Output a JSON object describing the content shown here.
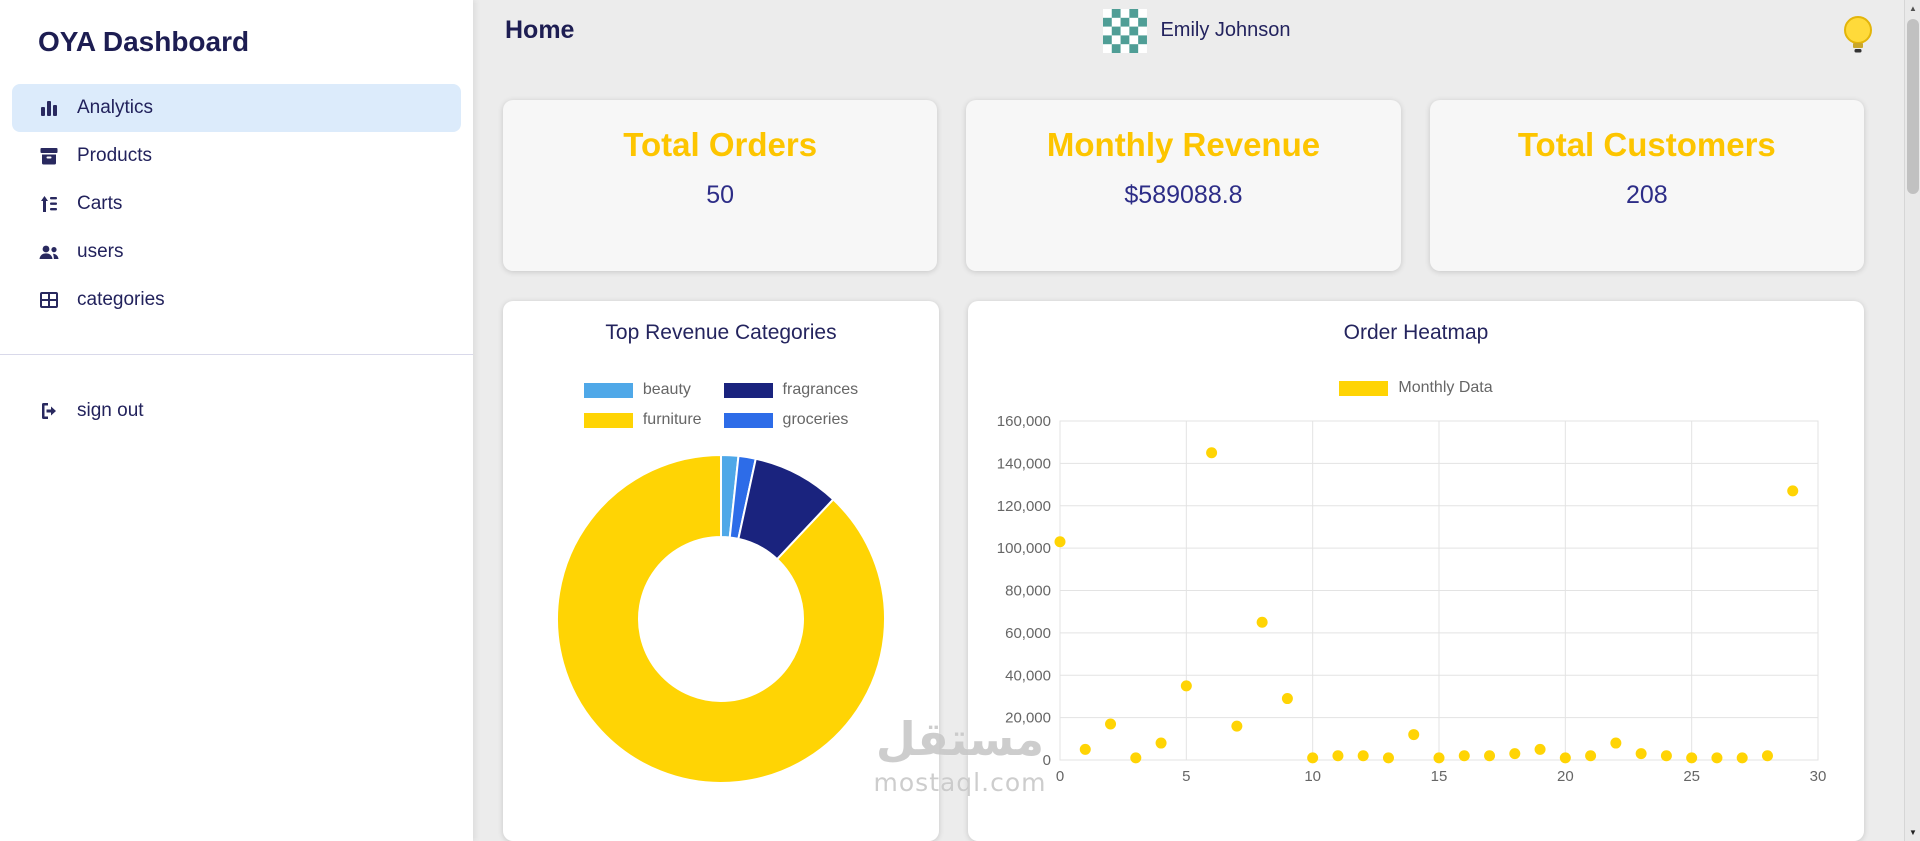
{
  "app": {
    "title": "OYA Dashboard"
  },
  "header": {
    "title": "Home",
    "user_name": "Emily Johnson"
  },
  "sidebar": {
    "items": [
      {
        "label": "Analytics",
        "icon": "bar-chart-icon",
        "active": true
      },
      {
        "label": "Products",
        "icon": "products-box-icon",
        "active": false
      },
      {
        "label": "Carts",
        "icon": "sort-lines-icon",
        "active": false
      },
      {
        "label": "users",
        "icon": "users-icon",
        "active": false
      },
      {
        "label": "categories",
        "icon": "table-grid-icon",
        "active": false
      }
    ],
    "sign_out": {
      "label": "sign out",
      "icon": "sign-out-icon"
    }
  },
  "stats": [
    {
      "title": "Total Orders",
      "value": "50"
    },
    {
      "title": "Monthly Revenue",
      "value": "$589088.8"
    },
    {
      "title": "Total Customers",
      "value": "208"
    }
  ],
  "colors": {
    "accent_gold": "#fdc500",
    "navy_text": "#2d2d87",
    "active_item_bg": "#dcebfb",
    "chart_yellow": "#ffd404",
    "beauty_blue": "#4fa8e8",
    "fragrances_navy": "#1a237e",
    "groceries_blue": "#2d6ce8",
    "avatar_teal": "#4f9e96",
    "main_bg": "#ececec"
  },
  "chart_data": [
    {
      "type": "pie",
      "doughnut": true,
      "title": "Top Revenue Categories",
      "legend_position": "top",
      "legend": [
        {
          "label": "beauty",
          "color": "#4fa8e8"
        },
        {
          "label": "fragrances",
          "color": "#1a237e"
        },
        {
          "label": "furniture",
          "color": "#ffd404"
        },
        {
          "label": "groceries",
          "color": "#2d6ce8"
        }
      ],
      "segments": [
        {
          "label": "beauty",
          "value": 1.7,
          "color": "#4fa8e8"
        },
        {
          "label": "groceries",
          "value": 1.7,
          "color": "#2d6ce8"
        },
        {
          "label": "fragrances",
          "value": 8.6,
          "color": "#1a237e"
        },
        {
          "label": "furniture",
          "value": 88.0,
          "color": "#ffd404"
        }
      ]
    },
    {
      "type": "scatter",
      "title": "Order Heatmap",
      "legend": "Monthly Data",
      "legend_position": "top",
      "point_color": "#ffd404",
      "grid": true,
      "x": [
        0,
        1,
        2,
        3,
        4,
        5,
        6,
        7,
        8,
        9,
        10,
        11,
        12,
        13,
        14,
        15,
        16,
        17,
        18,
        19,
        20,
        21,
        22,
        23,
        24,
        25,
        26,
        27,
        28,
        29
      ],
      "y": [
        103000,
        5000,
        17000,
        1000,
        8000,
        35000,
        145000,
        16000,
        65000,
        29000,
        1000,
        2000,
        2000,
        1000,
        12000,
        1000,
        2000,
        2000,
        3000,
        5000,
        1000,
        2000,
        8000,
        3000,
        2000,
        1000,
        1000,
        1000,
        2000,
        127000
      ],
      "xlim": [
        0,
        30
      ],
      "ylim": [
        0,
        160000
      ],
      "x_tick_step": 5,
      "y_tick_step": 20000
    }
  ],
  "watermark": {
    "line1": "مستقل",
    "line2": "mostaql.com"
  },
  "scrollbar": {
    "up_arrow": "▲",
    "down_arrow": "▼"
  }
}
